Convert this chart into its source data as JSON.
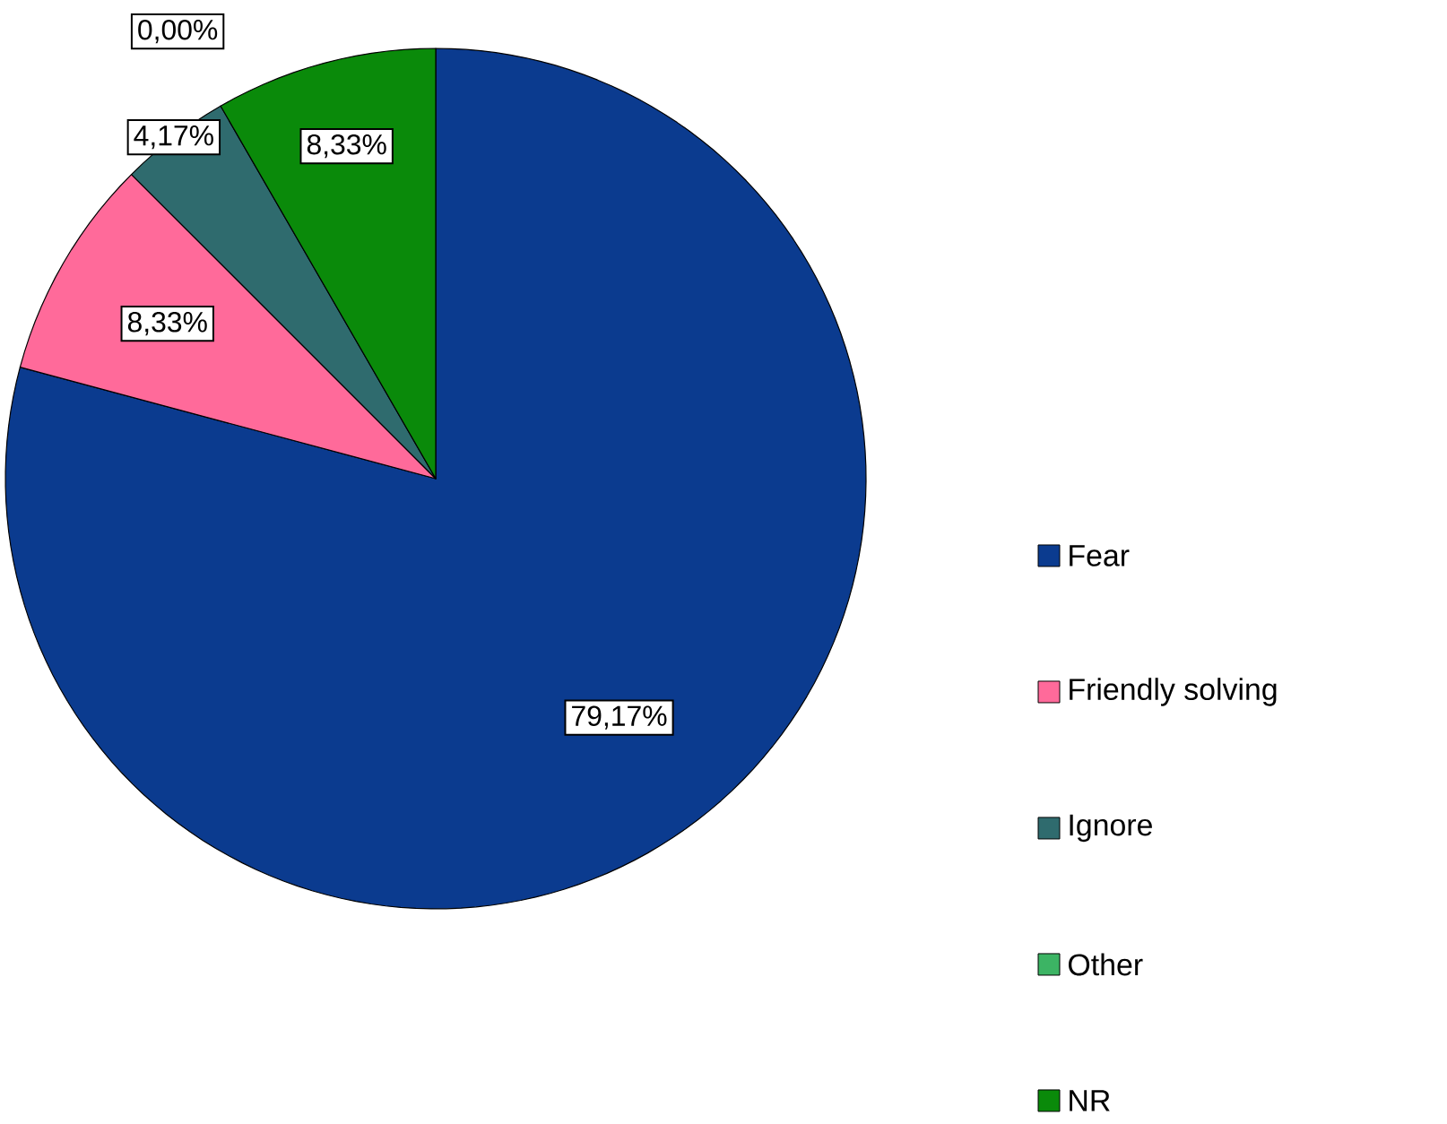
{
  "chart_data": {
    "type": "pie",
    "categories": [
      "Fear",
      "Friendly solving",
      "Ignore",
      "Other",
      "NR"
    ],
    "values": [
      79.17,
      8.33,
      4.17,
      0.0,
      8.33
    ],
    "colors": [
      "#0b3b8f",
      "#ff6a9a",
      "#2f6b6e",
      "#3cb464",
      "#0a8a0a"
    ],
    "value_labels": [
      "79,17%",
      "8,33%",
      "4,17%",
      "0,00%",
      "8,33%"
    ],
    "legend": "right"
  }
}
